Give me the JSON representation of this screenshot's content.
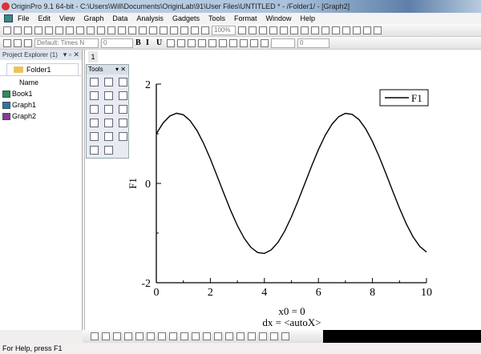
{
  "window": {
    "title": "OriginPro 9.1 64-bit - C:\\Users\\Will\\Documents\\OriginLab\\91\\User Files\\UNTITLED * - /Folder1/ - [Graph2]"
  },
  "menu": [
    "File",
    "Edit",
    "View",
    "Graph",
    "Data",
    "Analysis",
    "Gadgets",
    "Tools",
    "Format",
    "Window",
    "Help"
  ],
  "toolbar": {
    "zoom": "100%",
    "font": "Default: Times N",
    "font_size": "0",
    "bold": "B",
    "italic": "I",
    "underline": "U",
    "line_width": "0"
  },
  "project_explorer": {
    "title": "Project Explorer (1)",
    "folder": "Folder1",
    "column": "Name",
    "items": [
      {
        "label": "Book1",
        "color": "#2e8b57"
      },
      {
        "label": "Graph1",
        "color": "#3a6fa8"
      },
      {
        "label": "Graph2",
        "color": "#8a3a9a"
      }
    ]
  },
  "graph_window": {
    "page_tab": "1",
    "tools_title": "Tools"
  },
  "chart_data": {
    "type": "line",
    "ylabel": "F1",
    "xlabel": "",
    "xlim": [
      0,
      10
    ],
    "ylim": [
      -2,
      2
    ],
    "xticks": [
      "0",
      "2",
      "4",
      "6",
      "8",
      "10"
    ],
    "yticks": [
      "-2",
      "0",
      "2"
    ],
    "legend": {
      "position": "top-right",
      "entries": [
        "F1"
      ]
    },
    "annotations": [
      "x0 = 0",
      "dx = <autoX>"
    ],
    "series": [
      {
        "name": "F1",
        "color": "#000000",
        "x": [
          0,
          0.25,
          0.5,
          0.75,
          1,
          1.25,
          1.5,
          1.75,
          2,
          2.25,
          2.5,
          2.75,
          3,
          3.25,
          3.5,
          3.75,
          4,
          4.25,
          4.5,
          4.75,
          5,
          5.25,
          5.5,
          5.75,
          6,
          6.25,
          6.5,
          6.75,
          7,
          7.25,
          7.5,
          7.75,
          8,
          8.25,
          8.5,
          8.75,
          9,
          9.25,
          9.5,
          9.75,
          10
        ],
        "y": [
          1.0,
          1.216,
          1.357,
          1.413,
          1.382,
          1.264,
          1.068,
          0.806,
          0.493,
          0.15,
          -0.203,
          -0.543,
          -0.849,
          -1.102,
          -1.287,
          -1.392,
          -1.41,
          -1.341,
          -1.188,
          -0.962,
          -0.675,
          -0.347,
          0.003,
          0.353,
          0.681,
          0.966,
          1.192,
          1.343,
          1.411,
          1.39,
          1.285,
          1.099,
          0.844,
          0.538,
          0.197,
          -0.156,
          -0.499,
          -0.81,
          -1.072,
          -1.267,
          -1.383
        ]
      }
    ]
  },
  "status": "For Help, press F1"
}
